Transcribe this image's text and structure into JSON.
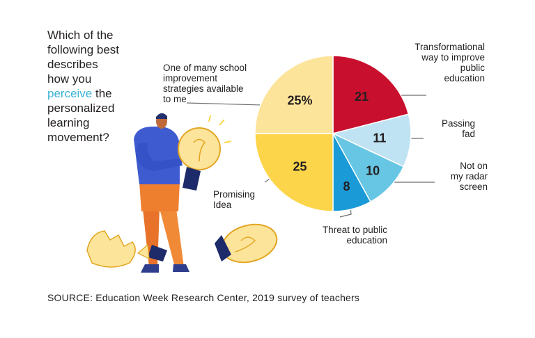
{
  "question": {
    "line1": "Which of the",
    "line2": "following best",
    "line3": "describes",
    "line4": "how you",
    "line5_highlight": "perceive",
    "line5_rest": " the",
    "line6": "personalized",
    "line7": "learning",
    "line8": "movement?"
  },
  "source": "SOURCE: Education Week Research Center, 2019 survey of teachers",
  "colors": {
    "highlight": "#3bb3d3",
    "text": "#231f20",
    "leader": "#6d6e71"
  },
  "illustration": {
    "person": "person-holding-lightbulb",
    "bulb": "lightbulb-icon",
    "broken_bulb": "broken-lightbulb-icon"
  },
  "chart_data": {
    "type": "pie",
    "start_angle_deg": 0,
    "direction": "clockwise",
    "slices": [
      {
        "key": "transform",
        "label_lines": [
          "Transformational",
          "way to improve",
          "public",
          "education"
        ],
        "value": 21,
        "display": "21",
        "color": "#c8102e",
        "text_color": "#231f20"
      },
      {
        "key": "passing",
        "label_lines": [
          "Passing",
          "fad"
        ],
        "value": 11,
        "display": "11",
        "color": "#bfe3f2",
        "text_color": "#231f20"
      },
      {
        "key": "radar",
        "label_lines": [
          "Not on",
          "my radar",
          "screen"
        ],
        "value": 10,
        "display": "10",
        "color": "#67c6e4",
        "text_color": "#231f20"
      },
      {
        "key": "threat",
        "label_lines": [
          "Threat to public",
          "education"
        ],
        "value": 8,
        "display": "8",
        "color": "#1a9ad6",
        "text_color": "#231f20"
      },
      {
        "key": "promising",
        "label_lines": [
          "Promising",
          "Idea"
        ],
        "value": 25,
        "display": "25",
        "color": "#fcd54a",
        "text_color": "#231f20"
      },
      {
        "key": "one_of_many",
        "label_lines": [
          "One of many school",
          "improvement",
          "strategies available",
          "to me"
        ],
        "value": 25,
        "display": "25%",
        "color": "#fde49b",
        "text_color": "#231f20"
      }
    ]
  }
}
